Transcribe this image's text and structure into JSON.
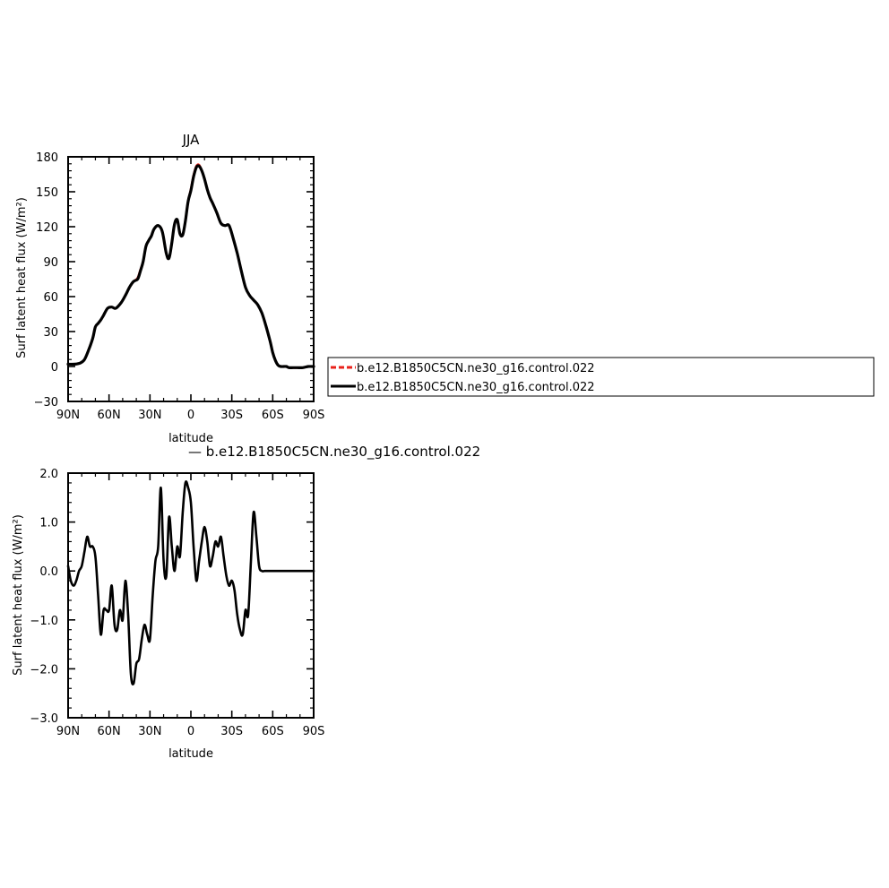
{
  "colors": {
    "control_case": "#e8221b",
    "reference_case": "#000000"
  },
  "chart_data": [
    {
      "type": "line",
      "title": "JJA",
      "xlabel": "latitude",
      "ylabel": "Surf latent heat flux (W/m²)",
      "ylim": [
        -30,
        180
      ],
      "xlim": [
        90,
        -90
      ],
      "x_ticks": [
        90,
        60,
        30,
        0,
        -30,
        -60,
        -90
      ],
      "x_tick_labels": [
        "90N",
        "60N",
        "30N",
        "0",
        "30S",
        "60S",
        "90S"
      ],
      "y_ticks": [
        -30,
        0,
        30,
        60,
        90,
        120,
        150,
        180
      ],
      "y_tick_labels": [
        "−30",
        "0",
        "30",
        "60",
        "90",
        "120",
        "150",
        "180"
      ],
      "legend_position": "right",
      "x": [
        90,
        85,
        81,
        78,
        75,
        72,
        70,
        68,
        66,
        64,
        61,
        58,
        55,
        51,
        48,
        45,
        42,
        39,
        37,
        35,
        33,
        31,
        29,
        27,
        24,
        21,
        18,
        16,
        14,
        12,
        10,
        8,
        6,
        4,
        2,
        0,
        -2,
        -4,
        -6,
        -8,
        -10,
        -12,
        -14,
        -16,
        -19,
        -22,
        -25,
        -28,
        -31,
        -34,
        -37,
        -40,
        -43,
        -46,
        -49,
        -52,
        -55,
        -58,
        -60,
        -62,
        -64,
        -66,
        -68,
        -70,
        -72,
        -75,
        -78,
        -82,
        -86,
        -90
      ],
      "series": [
        {
          "name": "b.e12.B1850C5CN.ne30_g16.control.022",
          "values": [
            2,
            2,
            3,
            6,
            14,
            24,
            34,
            37,
            40,
            44,
            50,
            51,
            50,
            55,
            61,
            68,
            73,
            75,
            82,
            90,
            103,
            108,
            112,
            118,
            121,
            116,
            97,
            93,
            106,
            122,
            126,
            114,
            113,
            125,
            142,
            151,
            163,
            171,
            172,
            168,
            161,
            152,
            145,
            140,
            132,
            123,
            121,
            121,
            110,
            97,
            82,
            68,
            61,
            57,
            53,
            46,
            35,
            22,
            12,
            5,
            1,
            0,
            0,
            0,
            -1,
            -1,
            -1,
            -1,
            0,
            0
          ]
        },
        {
          "name": "b.e12.B1850C5CN.ne30_g16.control.022",
          "values": [
            2,
            2,
            3,
            6,
            14,
            24,
            34,
            37,
            40,
            44,
            50,
            51,
            50,
            55,
            61,
            68,
            73,
            76,
            83,
            90,
            103,
            108,
            112,
            118,
            121,
            116,
            97,
            93,
            106,
            122,
            126,
            114,
            113,
            125,
            142,
            152,
            164,
            172,
            173,
            168,
            161,
            152,
            145,
            140,
            132,
            123,
            121,
            121,
            110,
            97,
            82,
            68,
            61,
            57,
            53,
            46,
            35,
            22,
            12,
            5,
            1,
            0,
            0,
            0,
            -1,
            -1,
            -1,
            -1,
            0,
            0
          ]
        }
      ]
    },
    {
      "type": "line",
      "title": "",
      "xlabel": "latitude",
      "ylabel": "Surf latent heat flux (W/m²)",
      "ylim": [
        -3.0,
        2.0
      ],
      "xlim": [
        90,
        -90
      ],
      "x_ticks": [
        90,
        60,
        30,
        0,
        -30,
        -60,
        -90
      ],
      "x_tick_labels": [
        "90N",
        "60N",
        "30N",
        "0",
        "30S",
        "60S",
        "90S"
      ],
      "y_ticks": [
        -3.0,
        -2.0,
        -1.0,
        0.0,
        1.0,
        2.0
      ],
      "y_tick_labels": [
        "−3.0",
        "−2.0",
        "−1.0",
        "0.0",
        "1.0",
        "2.0"
      ],
      "legend_position": "top",
      "x": [
        90,
        88,
        86,
        84,
        82,
        80,
        78,
        76,
        74,
        72,
        70,
        68,
        66,
        64,
        62,
        60,
        58,
        56,
        54,
        52,
        50,
        48,
        46,
        44,
        42,
        40,
        38,
        36,
        34,
        32,
        30,
        28,
        26,
        24,
        22,
        20,
        18,
        16,
        14,
        12,
        10,
        8,
        6,
        4,
        2,
        0,
        -2,
        -4,
        -6,
        -8,
        -10,
        -12,
        -14,
        -16,
        -18,
        -20,
        -22,
        -24,
        -26,
        -28,
        -30,
        -32,
        -34,
        -36,
        -38,
        -40,
        -42,
        -44,
        -46,
        -48,
        -50,
        -52,
        -54,
        -56,
        -58,
        -60,
        -62,
        -64,
        -66,
        -68,
        -70,
        -72,
        -75,
        -80,
        -85,
        -90
      ],
      "series": [
        {
          "name": "b.e12.B1850C5CN.ne30_g16.control.022",
          "values": [
            0.1,
            -0.2,
            -0.3,
            -0.2,
            0.0,
            0.1,
            0.4,
            0.7,
            0.5,
            0.5,
            0.3,
            -0.5,
            -1.3,
            -0.8,
            -0.8,
            -0.8,
            -0.3,
            -1.1,
            -1.2,
            -0.8,
            -1.0,
            -0.2,
            -0.9,
            -2.1,
            -2.3,
            -1.9,
            -1.8,
            -1.4,
            -1.1,
            -1.3,
            -1.4,
            -0.5,
            0.2,
            0.5,
            1.7,
            0.2,
            -0.1,
            1.1,
            0.5,
            0.0,
            0.5,
            0.3,
            1.2,
            1.8,
            1.7,
            1.4,
            0.5,
            -0.2,
            0.2,
            0.6,
            0.9,
            0.6,
            0.1,
            0.3,
            0.6,
            0.5,
            0.7,
            0.3,
            -0.1,
            -0.3,
            -0.2,
            -0.4,
            -0.9,
            -1.2,
            -1.3,
            -0.8,
            -0.9,
            0.2,
            1.2,
            0.7,
            0.1,
            0.0,
            0.0,
            0.0,
            0.0,
            0.0,
            0.0,
            0.0,
            0.0,
            0.0,
            0.0,
            0.0,
            0.0,
            0.0,
            0.0,
            0.0
          ]
        }
      ]
    }
  ],
  "legend_diff_label": "— b.e12.B1850C5CN.ne30_g16.control.022"
}
